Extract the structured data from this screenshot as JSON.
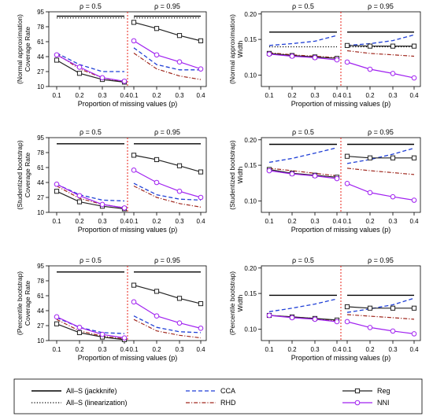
{
  "colors": {
    "jackknife": "#000000",
    "linearization": "#000000",
    "cca": "#1f3fd6",
    "rhd": "#a0281e",
    "reg": "#222222",
    "nni": "#a020f0",
    "divider": "#e8231a"
  },
  "legend": {
    "items": [
      {
        "key": "jackknife",
        "label": "All–S (jackknife)",
        "style": "solid"
      },
      {
        "key": "linearization",
        "label": "All–S (linearization)",
        "style": "dotted"
      },
      {
        "key": "cca",
        "label": "CCA",
        "style": "dashed"
      },
      {
        "key": "rhd",
        "label": "RHD",
        "style": "dashdot"
      },
      {
        "key": "reg",
        "label": "Reg",
        "style": "solid-square"
      },
      {
        "key": "nni",
        "label": "NNI",
        "style": "solid-circle"
      }
    ]
  },
  "chart_data": [
    {
      "type": "line",
      "row": 0,
      "col": 0,
      "ylabel_lines": [
        "(Normal approximation)",
        "Coverage Rate"
      ],
      "xlabel": "Proportion of missing values (p)",
      "yticks": [
        "10",
        "27",
        "44",
        "61",
        "78",
        "95"
      ],
      "ylim": [
        10,
        95
      ],
      "ylog": false,
      "xtick_labels": [
        "0.1",
        "0.2",
        "0.3",
        "0.4"
      ],
      "groups": [
        "ρ = 0.5",
        "ρ = 0.95"
      ],
      "series": {
        "jackknife": [
          [
            90,
            90,
            90,
            90
          ],
          [
            90,
            90,
            90,
            90
          ]
        ],
        "linearization": [
          [
            88,
            88,
            88,
            88
          ],
          [
            88,
            88,
            88,
            88
          ]
        ],
        "cca": [
          [
            48,
            35,
            27,
            27
          ],
          [
            54,
            35,
            29,
            29
          ]
        ],
        "rhd": [
          [
            47,
            30,
            20,
            15
          ],
          [
            48,
            30,
            22,
            18
          ]
        ],
        "reg": [
          [
            40,
            25,
            18,
            15
          ],
          [
            83,
            76,
            68,
            62
          ]
        ],
        "nni": [
          [
            46,
            32,
            20,
            16
          ],
          [
            62,
            46,
            38,
            30
          ]
        ]
      }
    },
    {
      "type": "line",
      "row": 0,
      "col": 1,
      "ylabel_lines": [
        "(Normal approximation)",
        "Width"
      ],
      "xlabel": "Proportion of missing values (p)",
      "yticks": [
        "0.10",
        "0.15",
        "0.20"
      ],
      "ytick_values": [
        0.1,
        0.15,
        0.2
      ],
      "ylim": [
        0.088,
        0.205
      ],
      "ylog": true,
      "xtick_labels": [
        "0.1",
        "0.2",
        "0.3",
        "0.4"
      ],
      "groups": [
        "ρ = 0.5",
        "ρ = 0.95"
      ],
      "series": {
        "jackknife": [
          [
            0.163,
            0.163,
            0.163,
            0.163
          ],
          [
            0.163,
            0.163,
            0.163,
            0.163
          ]
        ],
        "linearization": [
          [
            0.138,
            0.138,
            0.138,
            0.138
          ],
          [
            0.138,
            0.138,
            0.138,
            0.138
          ]
        ],
        "cca": [
          [
            0.14,
            0.143,
            0.147,
            0.157
          ],
          [
            0.14,
            0.143,
            0.148,
            0.158
          ]
        ],
        "rhd": [
          [
            0.129,
            0.126,
            0.124,
            0.122
          ],
          [
            0.132,
            0.128,
            0.126,
            0.124
          ]
        ],
        "reg": [
          [
            0.128,
            0.125,
            0.123,
            0.121
          ],
          [
            0.14,
            0.139,
            0.139,
            0.139
          ]
        ],
        "nni": [
          [
            0.127,
            0.124,
            0.122,
            0.119
          ],
          [
            0.116,
            0.107,
            0.102,
            0.097
          ]
        ]
      }
    },
    {
      "type": "line",
      "row": 1,
      "col": 0,
      "ylabel_lines": [
        "(Studentized bootstrap)",
        "Coverage Rate"
      ],
      "xlabel": "Proportion of missing values (p)",
      "yticks": [
        "10",
        "27",
        "44",
        "61",
        "78",
        "95"
      ],
      "ylim": [
        10,
        95
      ],
      "ylog": false,
      "xtick_labels": [
        "0.1",
        "0.2",
        "0.3",
        "0.4"
      ],
      "groups": [
        "ρ = 0.5",
        "ρ = 0.95"
      ],
      "series": {
        "jackknife": [
          [
            88,
            88,
            88,
            88
          ],
          [
            88,
            88,
            88,
            88
          ]
        ],
        "cca": [
          [
            42,
            30,
            24,
            23
          ],
          [
            43,
            30,
            25,
            24
          ]
        ],
        "rhd": [
          [
            40,
            26,
            19,
            15
          ],
          [
            40,
            27,
            20,
            16
          ]
        ],
        "reg": [
          [
            34,
            22,
            17,
            14
          ],
          [
            75,
            70,
            63,
            56
          ]
        ],
        "nni": [
          [
            42,
            29,
            19,
            15
          ],
          [
            58,
            44,
            34,
            27
          ]
        ]
      }
    },
    {
      "type": "line",
      "row": 1,
      "col": 1,
      "ylabel_lines": [
        "(Studentized bootstrap)",
        "Width"
      ],
      "xlabel": "Proportion of missing values (p)",
      "yticks": [
        "0.10",
        "0.15",
        "0.20"
      ],
      "ytick_values": [
        0.1,
        0.15,
        0.2
      ],
      "ylim": [
        0.088,
        0.205
      ],
      "ylog": true,
      "xtick_labels": [
        "0.1",
        "0.2",
        "0.3",
        "0.4"
      ],
      "groups": [
        "ρ = 0.5",
        "ρ = 0.95"
      ],
      "series": {
        "jackknife": [
          [
            0.19,
            0.19,
            0.19,
            0.19
          ],
          [
            0.19,
            0.19,
            0.19,
            0.19
          ]
        ],
        "cca": [
          [
            0.155,
            0.162,
            0.172,
            0.183
          ],
          [
            0.153,
            0.16,
            0.17,
            0.182
          ]
        ],
        "rhd": [
          [
            0.145,
            0.141,
            0.137,
            0.133
          ],
          [
            0.145,
            0.141,
            0.138,
            0.135
          ]
        ],
        "reg": [
          [
            0.143,
            0.137,
            0.134,
            0.131
          ],
          [
            0.166,
            0.163,
            0.163,
            0.163
          ]
        ],
        "nni": [
          [
            0.141,
            0.136,
            0.133,
            0.129
          ],
          [
            0.122,
            0.11,
            0.105,
            0.101
          ]
        ]
      }
    },
    {
      "type": "line",
      "row": 2,
      "col": 0,
      "ylabel_lines": [
        "(Percentile bootstrap)",
        "Coverage Rate"
      ],
      "xlabel": "Proportion of missing values (p)",
      "yticks": [
        "10",
        "27",
        "44",
        "61",
        "78",
        "95"
      ],
      "ylim": [
        10,
        95
      ],
      "ylog": false,
      "xtick_labels": [
        "0.1",
        "0.2",
        "0.3",
        "0.4"
      ],
      "groups": [
        "ρ = 0.5",
        "ρ = 0.95"
      ],
      "series": {
        "jackknife": [
          [
            88,
            88,
            88,
            88
          ],
          [
            88,
            88,
            88,
            88
          ]
        ],
        "cca": [
          [
            36,
            25,
            19,
            18
          ],
          [
            38,
            25,
            20,
            19
          ]
        ],
        "rhd": [
          [
            34,
            21,
            15,
            12
          ],
          [
            34,
            21,
            16,
            13
          ]
        ],
        "reg": [
          [
            29,
            19,
            14,
            11
          ],
          [
            73,
            66,
            58,
            52
          ]
        ],
        "nni": [
          [
            37,
            25,
            17,
            13
          ],
          [
            54,
            38,
            30,
            24
          ]
        ]
      }
    },
    {
      "type": "line",
      "row": 2,
      "col": 1,
      "ylabel_lines": [
        "(Percentile bootstrap)",
        "Width"
      ],
      "xlabel": "Proportion of missing values (p)",
      "yticks": [
        "0.10",
        "0.15",
        "0.20"
      ],
      "ytick_values": [
        0.1,
        0.15,
        0.2
      ],
      "ylim": [
        0.088,
        0.205
      ],
      "ylog": true,
      "xtick_labels": [
        "0.1",
        "0.2",
        "0.3",
        "0.4"
      ],
      "groups": [
        "ρ = 0.5",
        "ρ = 0.95"
      ],
      "series": {
        "jackknife": [
          [
            0.147,
            0.147,
            0.147,
            0.147
          ],
          [
            0.147,
            0.147,
            0.147,
            0.147
          ]
        ],
        "cca": [
          [
            0.122,
            0.127,
            0.133,
            0.141
          ],
          [
            0.121,
            0.126,
            0.132,
            0.142
          ]
        ],
        "rhd": [
          [
            0.117,
            0.115,
            0.113,
            0.11
          ],
          [
            0.118,
            0.116,
            0.114,
            0.112
          ]
        ],
        "reg": [
          [
            0.117,
            0.115,
            0.113,
            0.111
          ],
          [
            0.129,
            0.127,
            0.127,
            0.127
          ]
        ],
        "nni": [
          [
            0.117,
            0.114,
            0.112,
            0.109
          ],
          [
            0.109,
            0.102,
            0.098,
            0.095
          ]
        ]
      }
    }
  ]
}
